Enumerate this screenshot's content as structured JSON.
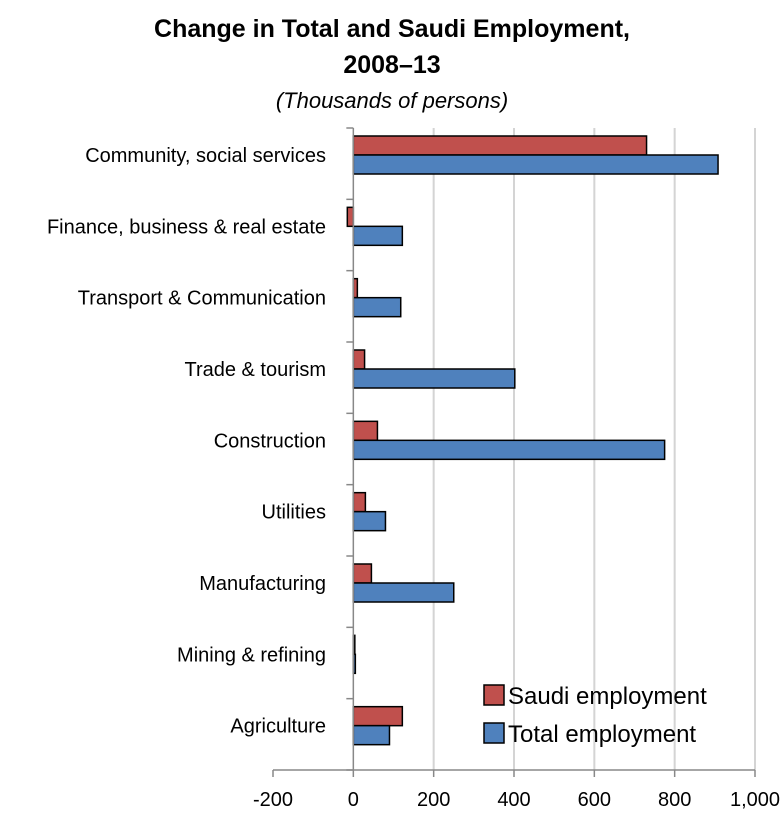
{
  "chart_data": {
    "type": "bar",
    "orientation": "horizontal",
    "title_line1": "Change in Total  and Saudi Employment,",
    "title_line2": "2008–13",
    "subtitle": "(Thousands of persons)",
    "categories": [
      "Community,  social services",
      "Finance,  business & real estate",
      "Transport & Communication",
      "Trade & tourism",
      "Construction",
      "Utilities",
      "Manufacturing",
      "Mining & refining",
      "Agriculture"
    ],
    "series": [
      {
        "name": "Saudi employment",
        "color": "#c0504d",
        "values": [
          730,
          -15,
          10,
          28,
          60,
          30,
          45,
          2,
          122
        ]
      },
      {
        "name": "Total employment",
        "color": "#4f81bd",
        "values": [
          908,
          122,
          118,
          402,
          775,
          80,
          250,
          5,
          90
        ]
      }
    ],
    "xlim": [
      -200,
      1000
    ],
    "xticks": [
      -200,
      0,
      200,
      400,
      600,
      800,
      1000
    ],
    "xtick_labels": [
      "-200",
      "0",
      "200",
      "400",
      "600",
      "800",
      "1,000"
    ],
    "grid": true,
    "legend_position": "bottom-right"
  }
}
